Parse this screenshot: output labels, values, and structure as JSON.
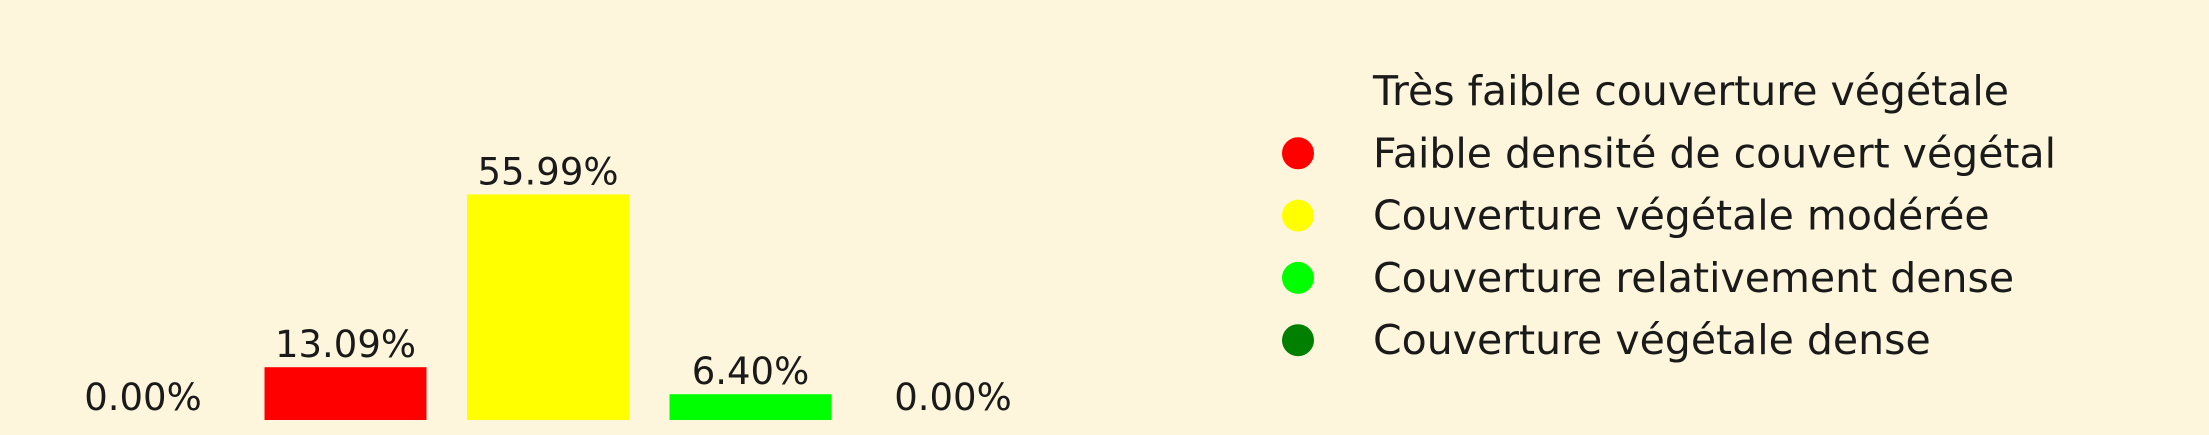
{
  "chart_data": {
    "type": "bar",
    "categories": [
      "Très faible couverture végétale",
      "Faible densité de couvert végétal",
      "Couverture végétale modérée",
      "Couverture relativement dense",
      "Couverture végétale dense"
    ],
    "values": [
      0.0,
      13.09,
      55.99,
      6.4,
      0.0
    ],
    "value_labels": [
      "0.00%",
      "13.09%",
      "55.99%",
      "6.40%",
      "0.00%"
    ],
    "colors": [
      "#fdf6dc",
      "#ff0000",
      "#ffff00",
      "#00ff00",
      "#007f00"
    ],
    "unit": "%",
    "ylim": [
      0,
      60
    ],
    "grid": false,
    "axes_visible": false,
    "legend_position": "right"
  },
  "background": "#fdf6dc"
}
